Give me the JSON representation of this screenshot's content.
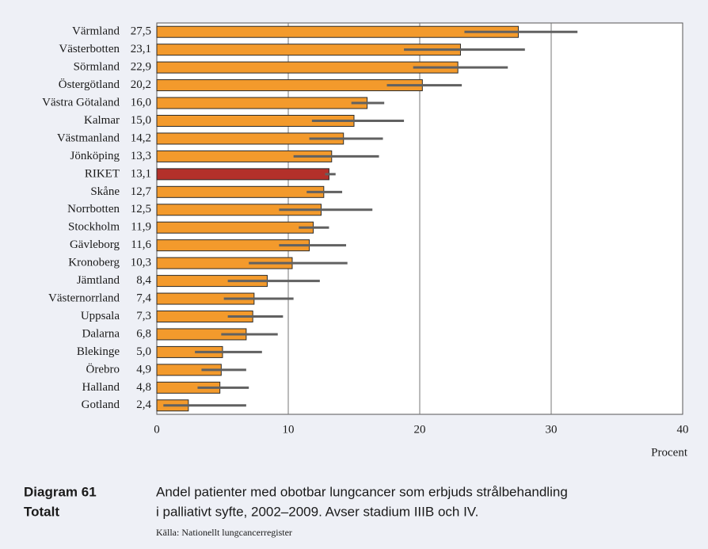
{
  "chart_data": {
    "type": "bar",
    "orientation": "horizontal",
    "figure_label": "Diagram 61",
    "figure_subtitle": "Totalt",
    "caption": [
      "Andel patienter med obotbar lungcancer som erbjuds strålbehandling",
      "i palliativt syfte, 2002–2009. Avser stadium IIIB och IV."
    ],
    "source": "Källa: Nationellt lungcancerregister",
    "x_label": "Procent",
    "categories": [
      "Värmland",
      "Västerbotten",
      "Sörmland",
      "Östergötland",
      "Västra Götaland",
      "Kalmar",
      "Västmanland",
      "Jönköping",
      "RIKET",
      "Skåne",
      "Norrbotten",
      "Stockholm",
      "Gävleborg",
      "Kronoberg",
      "Jämtland",
      "Västernorrland",
      "Uppsala",
      "Dalarna",
      "Blekinge",
      "Örebro",
      "Halland",
      "Gotland"
    ],
    "series": [
      {
        "values": [
          27.5,
          23.1,
          22.9,
          20.2,
          16.0,
          15.0,
          14.2,
          13.3,
          13.1,
          12.7,
          12.5,
          11.9,
          11.6,
          10.3,
          8.4,
          7.4,
          7.3,
          6.8,
          5.0,
          4.9,
          4.8,
          2.4
        ],
        "value_labels": [
          "27,5",
          "23,1",
          "22,9",
          "20,2",
          "16,0",
          "15,0",
          "14,2",
          "13,3",
          "13,1",
          "12,7",
          "12,5",
          "11,9",
          "11,6",
          "10,3",
          "8,4",
          "7,4",
          "7,3",
          "6,8",
          "5,0",
          "4,9",
          "4,8",
          "2,4"
        ],
        "ci_low": [
          23.4,
          18.8,
          19.5,
          17.5,
          14.8,
          11.8,
          11.6,
          10.4,
          12.8,
          11.4,
          9.3,
          10.8,
          9.3,
          7.0,
          5.4,
          5.1,
          5.4,
          4.9,
          2.9,
          3.4,
          3.1,
          0.5
        ],
        "ci_high": [
          32.0,
          28.0,
          26.7,
          23.2,
          17.3,
          18.8,
          17.2,
          16.9,
          13.6,
          14.1,
          16.4,
          13.1,
          14.4,
          14.5,
          12.4,
          10.4,
          9.6,
          9.2,
          8.0,
          6.8,
          7.0,
          6.8
        ],
        "colors": [
          "#f39a2c",
          "#f39a2c",
          "#f39a2c",
          "#f39a2c",
          "#f39a2c",
          "#f39a2c",
          "#f39a2c",
          "#f39a2c",
          "#b3302a",
          "#f39a2c",
          "#f39a2c",
          "#f39a2c",
          "#f39a2c",
          "#f39a2c",
          "#f39a2c",
          "#f39a2c",
          "#f39a2c",
          "#f39a2c",
          "#f39a2c",
          "#f39a2c",
          "#f39a2c",
          "#f39a2c"
        ],
        "error_color": "#616161"
      }
    ],
    "xlim": [
      0,
      40
    ],
    "xticks": [
      0,
      10,
      20,
      30,
      40
    ],
    "grid": true
  }
}
